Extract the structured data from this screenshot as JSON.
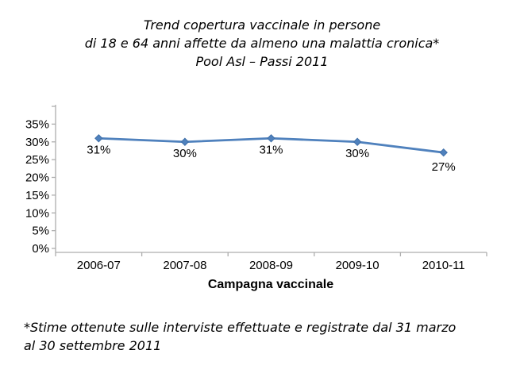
{
  "title": {
    "line1": "Trend copertura vaccinale in persone",
    "line2": "di 18 e 64 anni affette da almeno una malattia cronica*",
    "line3": "Pool Asl – Passi 2011"
  },
  "chart_data": {
    "type": "line",
    "categories": [
      "2006-07",
      "2007-08",
      "2008-09",
      "2009-10",
      "2010-11"
    ],
    "values": [
      31,
      30,
      31,
      30,
      27
    ],
    "data_labels": [
      "31%",
      "30%",
      "31%",
      "30%",
      "27%"
    ],
    "xlabel": "Campagna vaccinale",
    "ylabel": "",
    "y_tick_labels": [
      "0%",
      "5%",
      "10%",
      "15%",
      "20%",
      "25%",
      "30%",
      "35%"
    ],
    "ylim": [
      0,
      40
    ],
    "y_major_unit": 5,
    "grid": false,
    "legend": "none",
    "marker": "diamond"
  },
  "footnote": {
    "line1": "*Stime ottenute sulle interviste effettuate e registrate dal 31 marzo",
    "line2": "al 30 settembre 2011"
  },
  "colors": {
    "line": "#4F81BD",
    "marker": "#4F81BD",
    "marker_edge": "#3F6FA8",
    "axis": "#ADADAD",
    "text": "#000000"
  }
}
